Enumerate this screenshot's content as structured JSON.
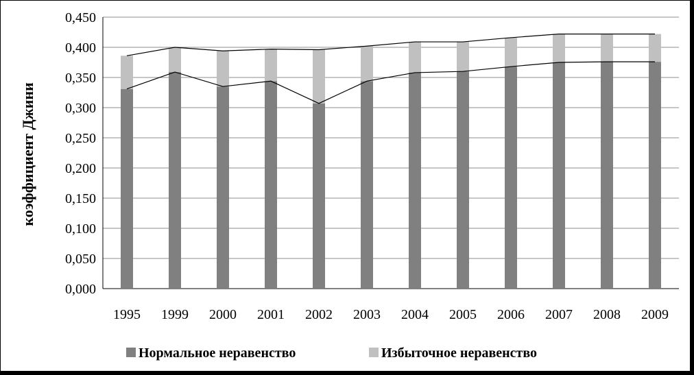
{
  "chart_data": {
    "type": "bar",
    "stacked": true,
    "categories": [
      "1995",
      "1999",
      "2000",
      "2001",
      "2002",
      "2003",
      "2004",
      "2005",
      "2006",
      "2007",
      "2008",
      "2009"
    ],
    "series": [
      {
        "name": "Нормальное неравенство",
        "color": "#808080",
        "values": [
          0.331,
          0.359,
          0.335,
          0.344,
          0.307,
          0.344,
          0.358,
          0.36,
          0.368,
          0.375,
          0.376,
          0.376
        ]
      },
      {
        "name": "Избыточное неравенство",
        "color": "#c0c0c0",
        "values": [
          0.055,
          0.041,
          0.059,
          0.053,
          0.089,
          0.058,
          0.051,
          0.049,
          0.048,
          0.047,
          0.046,
          0.046
        ]
      }
    ],
    "ylabel": "коэффициент Джини",
    "xlabel": "",
    "title": "",
    "ylim": [
      0,
      0.45
    ],
    "yticks": [
      "0,000",
      "0,050",
      "0,100",
      "0,150",
      "0,200",
      "0,250",
      "0,300",
      "0,350",
      "0,400",
      "0,450"
    ],
    "ytick_values": [
      0,
      0.05,
      0.1,
      0.15,
      0.2,
      0.25,
      0.3,
      0.35,
      0.4,
      0.45
    ],
    "grid": true,
    "legend_position": "bottom",
    "lines": "connect tops of each stacked segment"
  }
}
